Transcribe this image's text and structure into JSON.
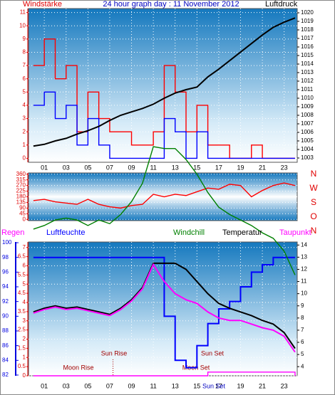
{
  "chart_data": [
    {
      "type": "line",
      "title": "24 hour graph day : 11 November 2012",
      "ylabel": "Windstärke",
      "y2label": "Luftdruck",
      "x": [
        0,
        1,
        2,
        3,
        4,
        5,
        6,
        7,
        8,
        9,
        10,
        11,
        12,
        13,
        14,
        15,
        16,
        17,
        18,
        19,
        20,
        21,
        22,
        23,
        24
      ],
      "xlim": [
        -0.45,
        24.2
      ],
      "xticks": [
        {
          "value": 1,
          "label": "01"
        },
        {
          "value": 3,
          "label": "03"
        },
        {
          "value": 5,
          "label": "05"
        },
        {
          "value": 7,
          "label": "07"
        },
        {
          "value": 9,
          "label": "09"
        },
        {
          "value": 11,
          "label": "11"
        },
        {
          "value": 13,
          "label": "13"
        },
        {
          "value": 15,
          "label": "15"
        },
        {
          "value": 17,
          "label": "17"
        },
        {
          "value": 19,
          "label": "19"
        },
        {
          "value": 21,
          "label": "21"
        },
        {
          "value": 23,
          "label": "23"
        }
      ],
      "ylim": [
        -0.3,
        11.3
      ],
      "yticks": [
        0,
        1,
        2,
        3,
        4,
        5,
        6,
        7,
        8,
        9,
        10,
        11
      ],
      "ycolor": "#e00000",
      "y2lim": [
        1002.5,
        1020.5
      ],
      "y2ticks": [
        1003,
        1004,
        1005,
        1006,
        1007,
        1008,
        1009,
        1010,
        1011,
        1012,
        1013,
        1014,
        1015,
        1016,
        1017,
        1018,
        1019,
        1020
      ],
      "grid": true,
      "series": [
        {
          "color": "#ff0000",
          "step": true,
          "values": [
            7,
            9,
            6,
            7,
            2,
            5,
            3,
            2,
            2,
            1,
            1,
            2,
            7,
            5,
            2,
            4,
            1,
            1,
            0,
            0,
            1,
            0,
            0,
            0,
            0
          ]
        },
        {
          "color": "#0000ff",
          "step": true,
          "values": [
            4,
            5,
            3,
            4,
            1,
            3,
            1,
            0,
            0,
            0,
            0,
            0,
            3,
            2,
            0,
            2,
            0,
            0,
            0,
            0,
            0,
            0,
            0,
            0,
            0
          ]
        },
        {
          "color": "#000000",
          "axis": "y2",
          "values": [
            1004.4,
            1004.6,
            1005,
            1005.3,
            1005.8,
            1006.2,
            1006.7,
            1007.4,
            1008,
            1008.4,
            1008.8,
            1009.3,
            1010,
            1010.6,
            1011,
            1011.3,
            1012.5,
            1013.4,
            1014.4,
            1015.4,
            1016.4,
            1017.4,
            1018.3,
            1018.9,
            1019.4
          ]
        }
      ]
    },
    {
      "type": "line",
      "x": [
        0,
        1,
        2,
        3,
        4,
        5,
        6,
        7,
        8,
        9,
        10,
        11,
        12,
        13,
        14,
        15,
        16,
        17,
        18,
        19,
        20,
        21,
        22,
        23,
        24
      ],
      "xlim": [
        -0.45,
        24.2
      ],
      "ylim": [
        -10,
        370
      ],
      "yticks": [
        0,
        45,
        90,
        135,
        180,
        225,
        270,
        315,
        360
      ],
      "ycolor": "#e00000",
      "compass": [
        "N",
        "W",
        "S",
        "O",
        "N"
      ],
      "grid": true,
      "series": [
        {
          "color": "#ff0000",
          "values": [
            150,
            160,
            140,
            130,
            120,
            160,
            120,
            100,
            90,
            110,
            120,
            200,
            180,
            200,
            190,
            220,
            250,
            240,
            280,
            270,
            180,
            230,
            270,
            290,
            270
          ]
        }
      ]
    },
    {
      "type": "line",
      "x": [
        0,
        1,
        2,
        3,
        4,
        5,
        6,
        7,
        8,
        9,
        10,
        11,
        12,
        13,
        14,
        15,
        16,
        17,
        18,
        19,
        20,
        21,
        22,
        23,
        24
      ],
      "xlim": [
        -0.45,
        24.2
      ],
      "xticks": [
        {
          "value": 1,
          "label": "01"
        },
        {
          "value": 3,
          "label": "03"
        },
        {
          "value": 5,
          "label": "05"
        },
        {
          "value": 7,
          "label": "07"
        },
        {
          "value": 9,
          "label": "09"
        },
        {
          "value": 11,
          "label": "11"
        },
        {
          "value": 13,
          "label": "13"
        },
        {
          "value": 15,
          "label": "15"
        },
        {
          "value": 17,
          "label": "17"
        },
        {
          "value": 19,
          "label": "19"
        },
        {
          "value": 21,
          "label": "21"
        },
        {
          "value": 23,
          "label": "23"
        }
      ],
      "ylim": [
        0,
        7.3
      ],
      "yticks": [
        0,
        0.5,
        1,
        1.5,
        2,
        2.5,
        3,
        3.5,
        4,
        4.5,
        5,
        5.5,
        6,
        6.5,
        7
      ],
      "ycolor": "#e00000",
      "y3lim": [
        81.9,
        100.1
      ],
      "y3ticks": [
        82,
        84,
        86,
        88,
        90,
        92,
        94,
        96,
        98,
        100
      ],
      "y3color": "#0000e0",
      "y2lim": [
        3.25,
        14.25
      ],
      "y2ticks": [
        4,
        5,
        6,
        7,
        8,
        9,
        10,
        11,
        12,
        13,
        14
      ],
      "grid": true,
      "series": [
        {
          "name": "Regen",
          "color": "#ff00ff",
          "step": true,
          "values": [
            0,
            0,
            0,
            0,
            0,
            0,
            0,
            0,
            0,
            0,
            0,
            0,
            0,
            0,
            0,
            0,
            0.2,
            0.2,
            0.2,
            0.2,
            0.2,
            0.2,
            0.2,
            0.2,
            0
          ]
        },
        {
          "name": "Luftfeuchte",
          "color": "#0000ff",
          "axis": "y3",
          "step": true,
          "values": [
            98,
            98,
            98,
            98,
            98,
            98,
            98,
            98,
            98,
            98,
            98,
            98,
            90,
            84,
            83,
            86,
            89,
            91,
            92,
            94,
            96,
            97,
            98,
            98,
            98
          ]
        },
        {
          "name": "Windchill",
          "color": "#008000",
          "values": [
            8,
            8.2,
            8.5,
            8.6,
            8.5,
            8.2,
            8.5,
            8.3,
            8.8,
            9.5,
            10.5,
            12.5,
            12.4,
            12.4,
            11.8,
            11,
            10,
            9.2,
            8.8,
            8.5,
            8.2,
            7.8,
            7.5,
            6.8,
            5.5
          ]
        },
        {
          "name": "Temperatur",
          "color": "#000000",
          "axis": "y2",
          "values": [
            8.5,
            8.8,
            9,
            8.8,
            8.9,
            8.7,
            8.5,
            8.3,
            8.8,
            9.5,
            10.5,
            12.5,
            12.5,
            12.5,
            12,
            11,
            10,
            9.2,
            8.8,
            8.5,
            8.2,
            7.8,
            7.5,
            6.8,
            5.5
          ]
        },
        {
          "name": "Taupunkt",
          "color": "#ff00ff",
          "axis": "y2",
          "values": [
            8.4,
            8.7,
            8.9,
            8.7,
            8.8,
            8.6,
            8.4,
            8.2,
            8.7,
            9.4,
            10.4,
            12.4,
            11,
            10,
            9.5,
            9.2,
            8.5,
            8,
            7.8,
            7.8,
            7.5,
            7.2,
            7,
            6.5,
            5.2
          ]
        }
      ],
      "annotations": [
        {
          "label": "Moon Rise",
          "x": 3.3
        },
        {
          "label": "Sun Rise",
          "x": 7.3
        },
        {
          "label": "Moon Set",
          "x": 15.6
        },
        {
          "label": "Sun Set",
          "x": 16.2
        },
        {
          "label": "Sun Set",
          "x": 16.2
        }
      ]
    }
  ]
}
